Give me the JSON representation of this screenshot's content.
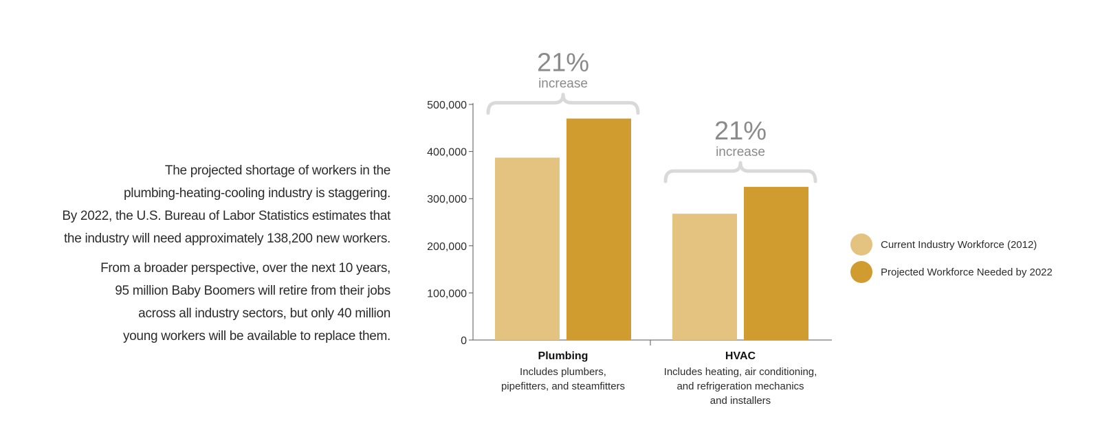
{
  "intro": {
    "paragraph1_lines": [
      "The projected shortage of workers in the",
      "plumbing-heating-cooling industry is staggering.",
      "By 2022, the U.S. Bureau of Labor Statistics estimates that",
      "the industry will need approximately 138,200 new workers."
    ],
    "paragraph2_lines": [
      "From a broader perspective, over the next 10 years,",
      "95 million Baby Boomers will retire from their jobs",
      "across all industry sectors, but only 40 million",
      "young workers will be available to replace them."
    ]
  },
  "chart_data": {
    "type": "bar",
    "categories": [
      "Plumbing",
      "HVAC"
    ],
    "category_descriptions": [
      [
        "Includes plumbers,",
        "pipefitters, and steamfitters"
      ],
      [
        "Includes heating, air conditioning,",
        "and refrigeration mechanics",
        "and installers"
      ]
    ],
    "series": [
      {
        "name": "Current Industry Workforce (2012)",
        "color": "#e4c27f",
        "values": [
          387000,
          268000
        ]
      },
      {
        "name": "Projected Workforce Needed by 2022",
        "color": "#d09b2f",
        "values": [
          470000,
          325000
        ]
      }
    ],
    "ylim": [
      0,
      500000
    ],
    "yticks": [
      0,
      100000,
      200000,
      300000,
      400000,
      500000
    ],
    "ytick_labels": [
      "0",
      "100,000",
      "200,000",
      "300,000",
      "400,000",
      "500,000"
    ],
    "annotations": [
      {
        "category": "Plumbing",
        "value": "21%",
        "label": "increase"
      },
      {
        "category": "HVAC",
        "value": "21%",
        "label": "increase"
      }
    ],
    "legend_position": "right",
    "grid": false
  }
}
